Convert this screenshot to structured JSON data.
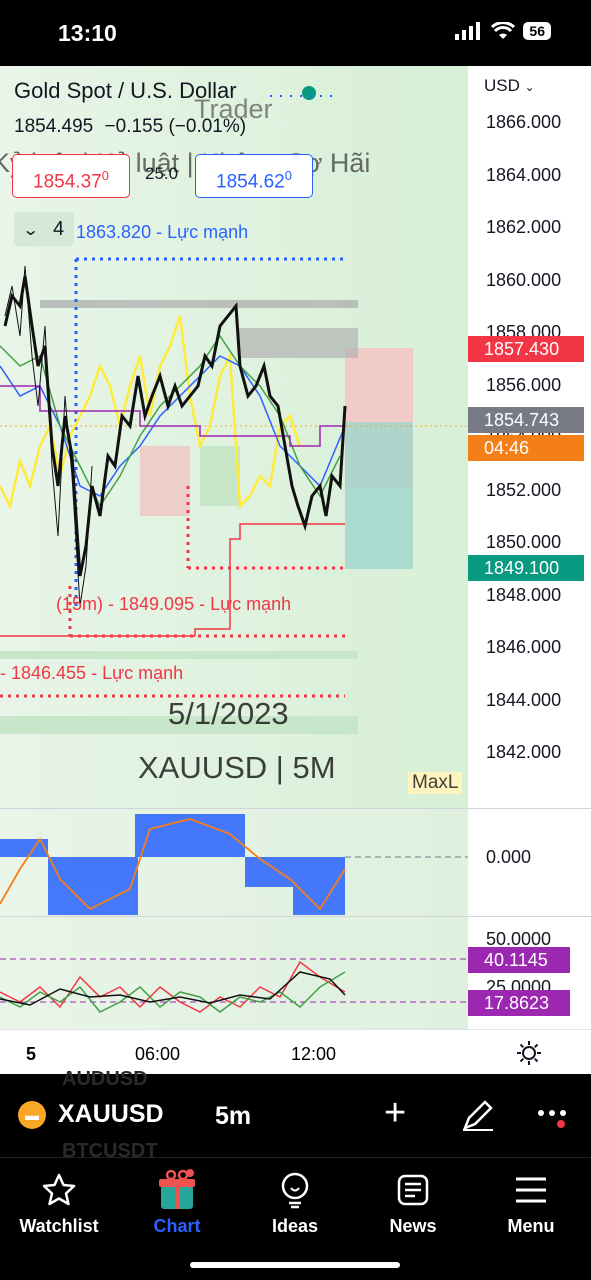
{
  "status_bar": {
    "time": "13:10",
    "battery": "56"
  },
  "chart": {
    "title": "Gold Spot / U.S. Dollar",
    "last_price": "1854.495",
    "change": "−0.155",
    "change_pct": "(−0.01%)",
    "sell_price": "1854.37",
    "sell_price_sup": "0",
    "spread": "25.0",
    "buy_price": "1854.62",
    "buy_price_sup": "0",
    "indicators_count": "4",
    "currency": "USD",
    "watermark_trader": "Trader",
    "watermark_channel": "Kỷ luật | Kỷ luật | Không Sợ Hãi",
    "watermark_date": "5/1/2023",
    "watermark_symbol": "XAUUSD | 5M",
    "maxl_label": "MaxL",
    "price_ticks": [
      "1866.000",
      "1864.000",
      "1862.000",
      "1860.000",
      "1858.000",
      "1856.000",
      "1854.000",
      "1852.000",
      "1850.000",
      "1848.000",
      "1846.000",
      "1844.000",
      "1842.000"
    ],
    "price_labels": {
      "upper": "1857.430",
      "current": "1854.743",
      "countdown": "04:46",
      "lower": "1849.100"
    },
    "annotations": {
      "top_level": "1863.820 - Lực mạnh",
      "level_15m": "(15m) - 1849.095 - Lực mạnh",
      "level_low": "- 1846.455 - Lực mạnh"
    },
    "macd_zero": "0.000",
    "rsi_top": "50.0000",
    "rsi_val1": "40.1145",
    "rsi_25": "25.0000",
    "rsi_val2": "17.8623",
    "time_labels": [
      "5",
      "06:00",
      "12:00"
    ],
    "colors": {
      "up_red": "#f23645",
      "current_gray": "#787b86",
      "countdown_orange": "#f57f17",
      "lower_green": "#089981",
      "rsi_purple": "#9c27b0",
      "accent_blue": "#2962ff"
    }
  },
  "symbol_bar": {
    "symbol": "XAUUSD",
    "interval": "5m",
    "ghost_1": "AUDUSD",
    "ghost_2": "BTCUSDT"
  },
  "tabs": [
    {
      "label": "Watchlist",
      "icon": "star-icon",
      "active": false
    },
    {
      "label": "Chart",
      "icon": "chart-gift-icon",
      "active": true
    },
    {
      "label": "Ideas",
      "icon": "lightbulb-icon",
      "active": false
    },
    {
      "label": "News",
      "icon": "news-icon",
      "active": false
    },
    {
      "label": "Menu",
      "icon": "menu-icon",
      "active": false
    }
  ]
}
